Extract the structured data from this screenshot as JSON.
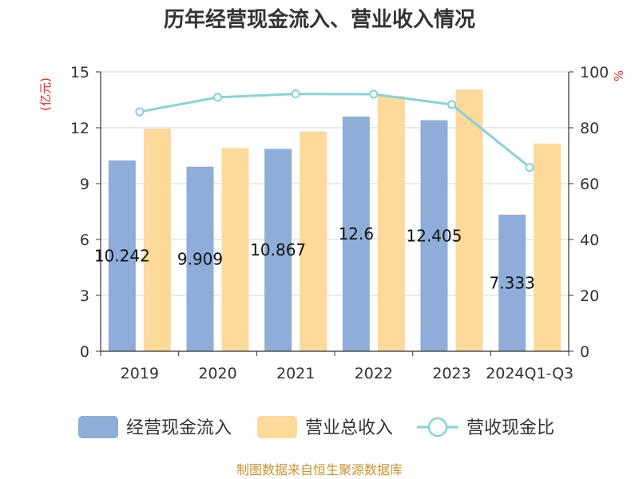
{
  "chart_data": {
    "type": "bar",
    "title": "历年经营现金流入、营业收入情况",
    "categories": [
      "2019",
      "2020",
      "2021",
      "2022",
      "2023",
      "2024Q1-Q3"
    ],
    "series": [
      {
        "name": "经营现金流入",
        "type": "bar",
        "axis": "left",
        "color": "#8eadd9",
        "values": [
          10.242,
          9.909,
          10.867,
          12.6,
          12.405,
          7.333
        ],
        "data_labels": [
          "10.242",
          "9.909",
          "10.867",
          "12.6",
          "12.405",
          "7.333"
        ]
      },
      {
        "name": "营业总收入",
        "type": "bar",
        "axis": "left",
        "color": "#fdd99a",
        "values": [
          11.95,
          10.9,
          11.8,
          13.7,
          14.05,
          11.15
        ]
      },
      {
        "name": "营收现金比",
        "type": "line",
        "axis": "right",
        "color": "#86d3d8",
        "values": [
          85.7,
          90.9,
          92.1,
          92.0,
          88.3,
          65.8
        ]
      }
    ],
    "y_left": {
      "unit": "(亿元)",
      "ylim": [
        0,
        15
      ],
      "ticks": [
        "0",
        "3",
        "6",
        "9",
        "12",
        "15"
      ]
    },
    "y_right": {
      "unit": "%",
      "ylim": [
        0,
        100
      ],
      "ticks": [
        "0",
        "20",
        "40",
        "60",
        "80",
        "100"
      ]
    },
    "grid": true,
    "legend_position": "bottom"
  },
  "source_note": "制图数据来自恒生聚源数据库"
}
